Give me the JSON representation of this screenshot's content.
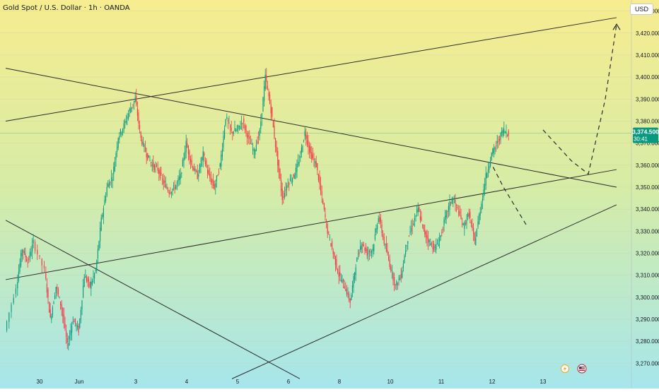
{
  "header": {
    "title": "Gold Spot / U.S. Dollar · 1h · OANDA",
    "currency_button": "USD"
  },
  "price_tag": {
    "price": "3,374.500",
    "countdown": "30:41",
    "color": "#089981"
  },
  "colors": {
    "up": "#089981",
    "down": "#f23645",
    "background_top": "#f7ec8f",
    "background_bottom": "#a6e6ec",
    "trendline": "#2b2b2b"
  },
  "icons": [
    "lightning-icon",
    "us-flag-calendar-icon"
  ],
  "chart_data": {
    "type": "candlestick",
    "interval": "1h",
    "ylim": [
      3265,
      3435
    ],
    "y_ticks": [
      "3,270.000",
      "3,280.000",
      "3,290.000",
      "3,300.000",
      "3,310.000",
      "3,320.000",
      "3,330.000",
      "3,340.000",
      "3,350.000",
      "3,360.000",
      "3,370.000",
      "3,380.000",
      "3,390.000",
      "3,400.000",
      "3,410.000",
      "3,420.000",
      "3,430.000"
    ],
    "y_tick_values": [
      3270,
      3280,
      3290,
      3300,
      3310,
      3320,
      3330,
      3340,
      3350,
      3360,
      3370,
      3380,
      3390,
      3400,
      3410,
      3420,
      3430
    ],
    "x_range": [
      0,
      126
    ],
    "x_ticks": [
      {
        "label": "30",
        "x": 6
      },
      {
        "label": "Jun",
        "x": 13
      },
      {
        "label": "3",
        "x": 23
      },
      {
        "label": "4",
        "x": 32
      },
      {
        "label": "5",
        "x": 41
      },
      {
        "label": "6",
        "x": 50
      },
      {
        "label": "8",
        "x": 59
      },
      {
        "label": "10",
        "x": 68
      },
      {
        "label": "11",
        "x": 77
      },
      {
        "label": "12",
        "x": 86
      },
      {
        "label": "13",
        "x": 95
      }
    ],
    "last_price": 3374.5,
    "anchors": [
      {
        "x": 0,
        "y": 3285
      },
      {
        "x": 2,
        "y": 3305
      },
      {
        "x": 3,
        "y": 3322
      },
      {
        "x": 4,
        "y": 3316
      },
      {
        "x": 5,
        "y": 3325
      },
      {
        "x": 7,
        "y": 3312
      },
      {
        "x": 8,
        "y": 3290
      },
      {
        "x": 9,
        "y": 3305
      },
      {
        "x": 10,
        "y": 3295
      },
      {
        "x": 11,
        "y": 3278
      },
      {
        "x": 12,
        "y": 3290
      },
      {
        "x": 13,
        "y": 3285
      },
      {
        "x": 14,
        "y": 3310
      },
      {
        "x": 15,
        "y": 3305
      },
      {
        "x": 16,
        "y": 3312
      },
      {
        "x": 17,
        "y": 3335
      },
      {
        "x": 18,
        "y": 3350
      },
      {
        "x": 19,
        "y": 3355
      },
      {
        "x": 20,
        "y": 3373
      },
      {
        "x": 21,
        "y": 3378
      },
      {
        "x": 22,
        "y": 3385
      },
      {
        "x": 23,
        "y": 3390
      },
      {
        "x": 24,
        "y": 3372
      },
      {
        "x": 25,
        "y": 3365
      },
      {
        "x": 26,
        "y": 3360
      },
      {
        "x": 27,
        "y": 3358
      },
      {
        "x": 28,
        "y": 3352
      },
      {
        "x": 29,
        "y": 3348
      },
      {
        "x": 30,
        "y": 3350
      },
      {
        "x": 31,
        "y": 3355
      },
      {
        "x": 32,
        "y": 3370
      },
      {
        "x": 33,
        "y": 3360
      },
      {
        "x": 34,
        "y": 3355
      },
      {
        "x": 35,
        "y": 3365
      },
      {
        "x": 36,
        "y": 3355
      },
      {
        "x": 37,
        "y": 3350
      },
      {
        "x": 38,
        "y": 3360
      },
      {
        "x": 39,
        "y": 3382
      },
      {
        "x": 40,
        "y": 3375
      },
      {
        "x": 41,
        "y": 3376
      },
      {
        "x": 42,
        "y": 3380
      },
      {
        "x": 43,
        "y": 3372
      },
      {
        "x": 44,
        "y": 3366
      },
      {
        "x": 45,
        "y": 3375
      },
      {
        "x": 46,
        "y": 3400
      },
      {
        "x": 47,
        "y": 3385
      },
      {
        "x": 48,
        "y": 3365
      },
      {
        "x": 49,
        "y": 3345
      },
      {
        "x": 50,
        "y": 3352
      },
      {
        "x": 51,
        "y": 3355
      },
      {
        "x": 52,
        "y": 3362
      },
      {
        "x": 53,
        "y": 3375
      },
      {
        "x": 54,
        "y": 3365
      },
      {
        "x": 55,
        "y": 3360
      },
      {
        "x": 56,
        "y": 3345
      },
      {
        "x": 57,
        "y": 3330
      },
      {
        "x": 58,
        "y": 3320
      },
      {
        "x": 59,
        "y": 3310
      },
      {
        "x": 60,
        "y": 3305
      },
      {
        "x": 61,
        "y": 3298
      },
      {
        "x": 62,
        "y": 3315
      },
      {
        "x": 63,
        "y": 3325
      },
      {
        "x": 64,
        "y": 3320
      },
      {
        "x": 65,
        "y": 3322
      },
      {
        "x": 66,
        "y": 3337
      },
      {
        "x": 67,
        "y": 3325
      },
      {
        "x": 68,
        "y": 3315
      },
      {
        "x": 69,
        "y": 3305
      },
      {
        "x": 70,
        "y": 3310
      },
      {
        "x": 71,
        "y": 3325
      },
      {
        "x": 72,
        "y": 3333
      },
      {
        "x": 73,
        "y": 3340
      },
      {
        "x": 74,
        "y": 3330
      },
      {
        "x": 75,
        "y": 3325
      },
      {
        "x": 76,
        "y": 3322
      },
      {
        "x": 77,
        "y": 3328
      },
      {
        "x": 78,
        "y": 3338
      },
      {
        "x": 79,
        "y": 3345
      },
      {
        "x": 80,
        "y": 3340
      },
      {
        "x": 81,
        "y": 3332
      },
      {
        "x": 82,
        "y": 3338
      },
      {
        "x": 83,
        "y": 3325
      },
      {
        "x": 84,
        "y": 3340
      },
      {
        "x": 85,
        "y": 3355
      },
      {
        "x": 86,
        "y": 3365
      },
      {
        "x": 87,
        "y": 3370
      },
      {
        "x": 88,
        "y": 3376
      },
      {
        "x": 89,
        "y": 3374.5
      }
    ],
    "trendlines": [
      {
        "name": "upper-channel-line",
        "x1": 0,
        "y1": 3380,
        "x2": 108,
        "y2": 3427
      },
      {
        "name": "descending-resistance-line",
        "x1": 0,
        "y1": 3404,
        "x2": 108,
        "y2": 3350
      },
      {
        "name": "mid-ascending-line",
        "x1": 0,
        "y1": 3308,
        "x2": 108,
        "y2": 3358
      },
      {
        "name": "lower-ascending-support-line",
        "x1": 40,
        "y1": 3263,
        "x2": 108,
        "y2": 3342
      },
      {
        "name": "lower-descending-line",
        "x1": 0,
        "y1": 3335,
        "x2": 52,
        "y2": 3263
      }
    ],
    "projections": [
      {
        "name": "dashed-projection-main",
        "points": [
          [
            95,
            3376
          ],
          [
            100,
            3362
          ],
          [
            103,
            3356
          ],
          [
            106,
            3390
          ],
          [
            108,
            3424
          ]
        ]
      },
      {
        "name": "dashed-projection-earlier",
        "points": [
          [
            92,
            3333
          ],
          [
            88,
            3350
          ],
          [
            86,
            3360
          ]
        ]
      }
    ]
  }
}
